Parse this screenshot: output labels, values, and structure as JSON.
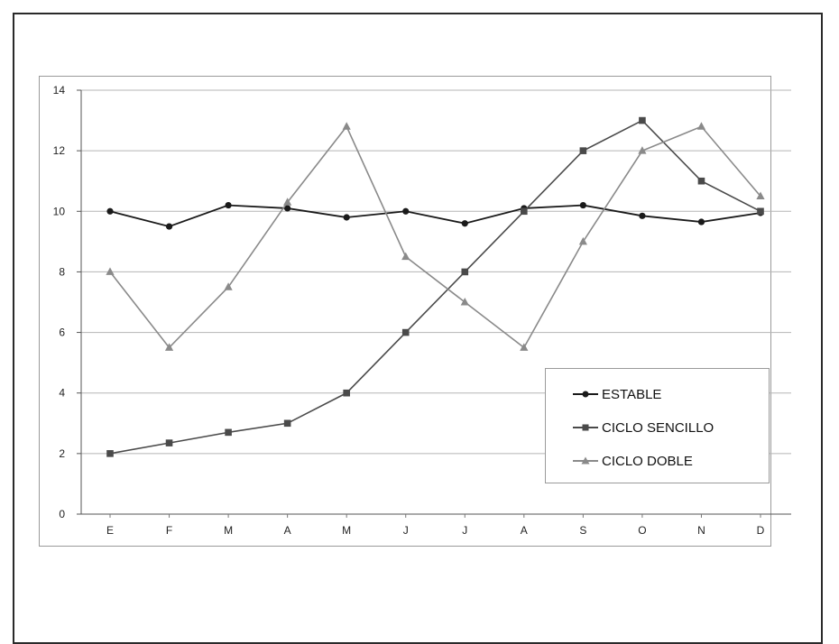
{
  "chart_data": {
    "type": "line",
    "title": "",
    "xlabel": "",
    "ylabel": "",
    "categories": [
      "E",
      "F",
      "M",
      "A",
      "M",
      "J",
      "J",
      "A",
      "S",
      "O",
      "N",
      "D"
    ],
    "ylim": [
      0,
      14
    ],
    "yticks": [
      0,
      2,
      4,
      6,
      8,
      10,
      12,
      14
    ],
    "grid": "horizontal",
    "legend_position": "bottom-right",
    "series": [
      {
        "name": "ESTABLE",
        "marker": "circle",
        "color": "#1a1a1a",
        "values": [
          10.0,
          9.5,
          10.2,
          10.1,
          9.8,
          10.0,
          9.6,
          10.1,
          10.2,
          9.85,
          9.65,
          9.95
        ]
      },
      {
        "name": "CICLO SENCILLO",
        "marker": "square",
        "color": "#4a4a4a",
        "values": [
          2.0,
          2.35,
          2.7,
          3.0,
          4.0,
          6.0,
          8.0,
          10.0,
          12.0,
          13.0,
          11.0,
          10.0
        ]
      },
      {
        "name": "CICLO DOBLE",
        "marker": "triangle",
        "color": "#8a8a8a",
        "values": [
          8.0,
          5.5,
          7.5,
          10.3,
          12.8,
          8.5,
          7.0,
          5.5,
          9.0,
          12.0,
          12.8,
          10.5
        ]
      }
    ]
  }
}
